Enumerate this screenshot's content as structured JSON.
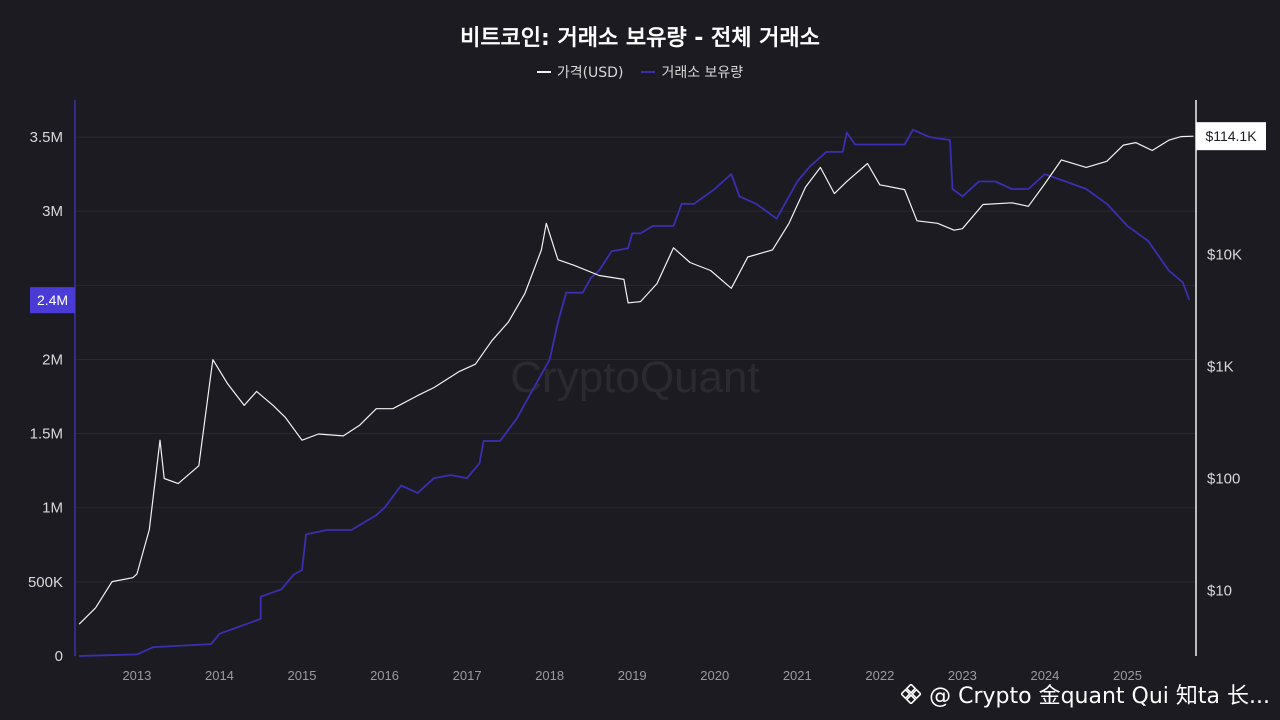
{
  "chart_data": {
    "type": "line",
    "title": "비트코인: 거래소 보유량 - 전체 거래소",
    "legend": [
      "가격(USD)",
      "거래소 보유량"
    ],
    "legend_position": "top-center",
    "x_ticks": [
      "2013",
      "2014",
      "2015",
      "2016",
      "2017",
      "2018",
      "2019",
      "2020",
      "2021",
      "2022",
      "2023",
      "2024",
      "2025"
    ],
    "x_range": [
      2012.25,
      2025.83
    ],
    "left_axis": {
      "ticks": [
        "0",
        "500K",
        "1M",
        "1.5M",
        "2M",
        "3M",
        "3.5M"
      ],
      "tick_values": [
        0,
        500000,
        1000000,
        1500000,
        2000000,
        3000000,
        3500000
      ],
      "ylim": [
        0,
        3750000
      ],
      "current_label": "2.4M"
    },
    "right_axis": {
      "scale": "log",
      "ticks": [
        "$10",
        "$100",
        "$1K",
        "$10K"
      ],
      "tick_values": [
        10,
        100,
        1000,
        10000
      ],
      "ylim": [
        2.6,
        240000
      ],
      "current_label": "$114.1K"
    },
    "grid": true,
    "watermark": "CryptoQuant",
    "series": [
      {
        "name": "거래소 보유량",
        "axis": "left",
        "color": "#3a2fb0",
        "points": [
          [
            2012.3,
            0
          ],
          [
            2012.6,
            5000
          ],
          [
            2012.95,
            10000
          ],
          [
            2013.0,
            10000
          ],
          [
            2013.2,
            60000
          ],
          [
            2013.55,
            70000
          ],
          [
            2013.9,
            80000
          ],
          [
            2014.0,
            150000
          ],
          [
            2014.25,
            200000
          ],
          [
            2014.5,
            250000
          ],
          [
            2014.5,
            400000
          ],
          [
            2014.75,
            450000
          ],
          [
            2014.9,
            550000
          ],
          [
            2015.0,
            580000
          ],
          [
            2015.05,
            820000
          ],
          [
            2015.3,
            850000
          ],
          [
            2015.6,
            850000
          ],
          [
            2015.9,
            950000
          ],
          [
            2016.0,
            1000000
          ],
          [
            2016.2,
            1150000
          ],
          [
            2016.4,
            1100000
          ],
          [
            2016.6,
            1200000
          ],
          [
            2016.8,
            1220000
          ],
          [
            2017.0,
            1200000
          ],
          [
            2017.15,
            1300000
          ],
          [
            2017.2,
            1450000
          ],
          [
            2017.4,
            1450000
          ],
          [
            2017.6,
            1600000
          ],
          [
            2017.8,
            1800000
          ],
          [
            2018.0,
            2000000
          ],
          [
            2018.1,
            2250000
          ],
          [
            2018.2,
            2450000
          ],
          [
            2018.4,
            2450000
          ],
          [
            2018.5,
            2550000
          ],
          [
            2018.6,
            2600000
          ],
          [
            2018.75,
            2730000
          ],
          [
            2018.95,
            2750000
          ],
          [
            2019.0,
            2850000
          ],
          [
            2019.1,
            2850000
          ],
          [
            2019.25,
            2900000
          ],
          [
            2019.5,
            2900000
          ],
          [
            2019.6,
            3050000
          ],
          [
            2019.75,
            3050000
          ],
          [
            2020.0,
            3150000
          ],
          [
            2020.2,
            3250000
          ],
          [
            2020.3,
            3100000
          ],
          [
            2020.5,
            3050000
          ],
          [
            2020.75,
            2950000
          ],
          [
            2021.0,
            3200000
          ],
          [
            2021.15,
            3300000
          ],
          [
            2021.35,
            3400000
          ],
          [
            2021.55,
            3400000
          ],
          [
            2021.6,
            3530000
          ],
          [
            2021.7,
            3450000
          ],
          [
            2022.0,
            3450000
          ],
          [
            2022.3,
            3450000
          ],
          [
            2022.4,
            3550000
          ],
          [
            2022.6,
            3500000
          ],
          [
            2022.85,
            3480000
          ],
          [
            2022.88,
            3150000
          ],
          [
            2023.0,
            3100000
          ],
          [
            2023.2,
            3200000
          ],
          [
            2023.4,
            3200000
          ],
          [
            2023.6,
            3150000
          ],
          [
            2023.8,
            3150000
          ],
          [
            2024.0,
            3250000
          ],
          [
            2024.25,
            3200000
          ],
          [
            2024.5,
            3150000
          ],
          [
            2024.75,
            3050000
          ],
          [
            2025.0,
            2900000
          ],
          [
            2025.25,
            2800000
          ],
          [
            2025.5,
            2600000
          ],
          [
            2025.67,
            2520000
          ],
          [
            2025.75,
            2400000
          ]
        ]
      },
      {
        "name": "가격(USD)",
        "axis": "right",
        "color": "#f2f2f2",
        "points": [
          [
            2012.3,
            5
          ],
          [
            2012.5,
            7
          ],
          [
            2012.7,
            12
          ],
          [
            2012.95,
            13
          ],
          [
            2013.0,
            14
          ],
          [
            2013.15,
            35
          ],
          [
            2013.28,
            220
          ],
          [
            2013.33,
            100
          ],
          [
            2013.5,
            90
          ],
          [
            2013.75,
            130
          ],
          [
            2013.9,
            900
          ],
          [
            2013.92,
            1150
          ],
          [
            2014.1,
            700
          ],
          [
            2014.3,
            450
          ],
          [
            2014.45,
            600
          ],
          [
            2014.65,
            450
          ],
          [
            2014.8,
            350
          ],
          [
            2015.0,
            220
          ],
          [
            2015.2,
            250
          ],
          [
            2015.5,
            240
          ],
          [
            2015.7,
            300
          ],
          [
            2015.9,
            420
          ],
          [
            2016.1,
            420
          ],
          [
            2016.4,
            550
          ],
          [
            2016.6,
            650
          ],
          [
            2016.9,
            900
          ],
          [
            2017.1,
            1050
          ],
          [
            2017.3,
            1700
          ],
          [
            2017.5,
            2500
          ],
          [
            2017.7,
            4500
          ],
          [
            2017.9,
            11000
          ],
          [
            2017.96,
            19000
          ],
          [
            2018.1,
            9000
          ],
          [
            2018.3,
            8000
          ],
          [
            2018.6,
            6500
          ],
          [
            2018.9,
            6000
          ],
          [
            2018.95,
            3700
          ],
          [
            2019.1,
            3800
          ],
          [
            2019.3,
            5500
          ],
          [
            2019.5,
            11500
          ],
          [
            2019.7,
            8500
          ],
          [
            2019.95,
            7200
          ],
          [
            2020.2,
            5000
          ],
          [
            2020.4,
            9500
          ],
          [
            2020.7,
            11000
          ],
          [
            2020.9,
            19000
          ],
          [
            2021.1,
            40000
          ],
          [
            2021.28,
            60000
          ],
          [
            2021.45,
            35000
          ],
          [
            2021.6,
            45000
          ],
          [
            2021.85,
            65000
          ],
          [
            2022.0,
            42000
          ],
          [
            2022.3,
            38000
          ],
          [
            2022.45,
            20000
          ],
          [
            2022.7,
            19000
          ],
          [
            2022.9,
            16500
          ],
          [
            2023.0,
            17000
          ],
          [
            2023.25,
            28000
          ],
          [
            2023.6,
            29000
          ],
          [
            2023.8,
            27000
          ],
          [
            2024.0,
            43000
          ],
          [
            2024.2,
            70000
          ],
          [
            2024.5,
            60000
          ],
          [
            2024.75,
            68000
          ],
          [
            2024.95,
            95000
          ],
          [
            2025.1,
            100000
          ],
          [
            2025.3,
            85000
          ],
          [
            2025.5,
            105000
          ],
          [
            2025.65,
            113000
          ],
          [
            2025.8,
            114100
          ]
        ]
      }
    ]
  },
  "footer": {
    "handle": "@ Crypto 金quant Qui 知ta 长..."
  }
}
